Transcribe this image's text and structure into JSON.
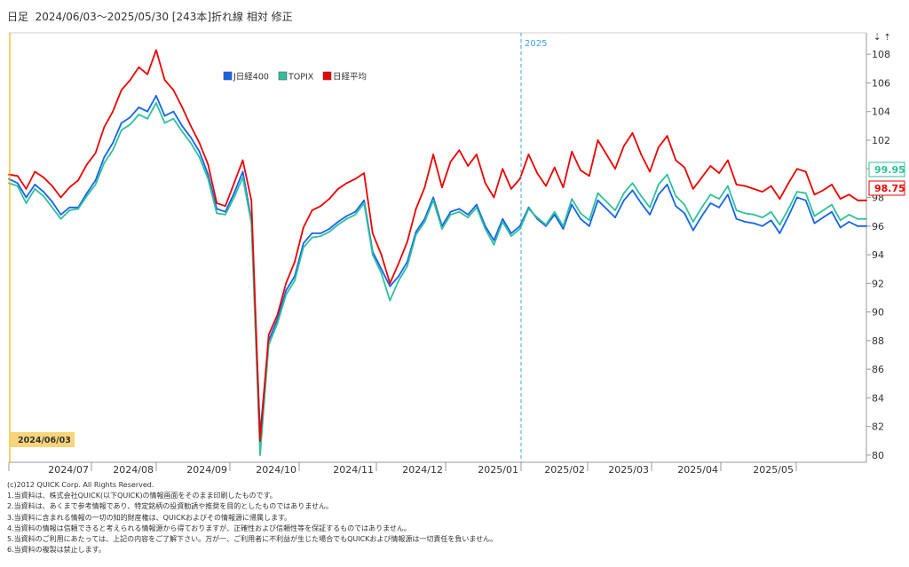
{
  "header": {
    "title": "日足  2024/06/03～2025/05/30 [243本]折れ線 相対 修正"
  },
  "scroll_arrows": "⇣ ⇡",
  "start_badge": "2024/06/03",
  "year_marker": "2025",
  "colors": {
    "jpx400": "#1464f0",
    "topix": "#2fc09a",
    "nikkei": "#ee0000",
    "badge_bg": "#f7d57a",
    "start_line": "#f0b400",
    "marker_line": "#3aa6e0"
  },
  "chart_data": {
    "type": "line",
    "x_ticks": [
      "2024/07",
      "2024/08",
      "2024/09",
      "2024/10",
      "2024/11",
      "2024/12",
      "2025/01",
      "2025/02",
      "2025/03",
      "2025/04",
      "2025/05"
    ],
    "ylim": [
      79.5,
      109.5
    ],
    "y_ticks": [
      80,
      82,
      84,
      86,
      88,
      90,
      92,
      94,
      96,
      98,
      100,
      102,
      104,
      106,
      108
    ],
    "legend_position": "top-left",
    "grid": false,
    "last_value_labels": [
      "99.95",
      "98.75"
    ],
    "series": [
      {
        "name": "J日経400",
        "color": "#1464f0",
        "values": [
          [
            1,
            99.3
          ],
          [
            2,
            99.0
          ],
          [
            3,
            98.0
          ],
          [
            4,
            98.9
          ],
          [
            5,
            98.4
          ],
          [
            6,
            97.7
          ],
          [
            7,
            96.8
          ],
          [
            8,
            97.3
          ],
          [
            9,
            97.3
          ],
          [
            10,
            98.3
          ],
          [
            11,
            99.2
          ],
          [
            12,
            100.8
          ],
          [
            13,
            101.8
          ],
          [
            14,
            103.2
          ],
          [
            15,
            103.6
          ],
          [
            16,
            104.3
          ],
          [
            17,
            104.0
          ],
          [
            18,
            105.1
          ],
          [
            19,
            103.7
          ],
          [
            20,
            104.0
          ],
          [
            21,
            103.0
          ],
          [
            22,
            102.2
          ],
          [
            23,
            101.2
          ],
          [
            24,
            99.6
          ],
          [
            25,
            97.2
          ],
          [
            26,
            97.0
          ],
          [
            27,
            98.3
          ],
          [
            28,
            99.8
          ],
          [
            29,
            96.4
          ],
          [
            30,
            81.5
          ],
          [
            31,
            88.0
          ],
          [
            32,
            89.5
          ],
          [
            33,
            91.5
          ],
          [
            34,
            92.5
          ],
          [
            35,
            94.8
          ],
          [
            36,
            95.5
          ],
          [
            37,
            95.5
          ],
          [
            38,
            95.8
          ],
          [
            39,
            96.3
          ],
          [
            40,
            96.7
          ],
          [
            41,
            97.0
          ],
          [
            42,
            97.8
          ],
          [
            43,
            94.2
          ],
          [
            44,
            93.0
          ],
          [
            45,
            91.8
          ],
          [
            46,
            92.5
          ],
          [
            47,
            93.5
          ],
          [
            48,
            95.6
          ],
          [
            49,
            96.5
          ],
          [
            50,
            98.0
          ],
          [
            51,
            96.0
          ],
          [
            52,
            97.0
          ],
          [
            53,
            97.2
          ],
          [
            54,
            96.8
          ],
          [
            55,
            97.5
          ],
          [
            56,
            96.0
          ],
          [
            57,
            95.0
          ],
          [
            58,
            96.5
          ],
          [
            59,
            95.5
          ],
          [
            60,
            96.0
          ],
          [
            61,
            97.3
          ],
          [
            62,
            96.5
          ],
          [
            63,
            96.0
          ],
          [
            64,
            96.8
          ],
          [
            65,
            95.8
          ],
          [
            66,
            97.5
          ],
          [
            67,
            96.5
          ],
          [
            68,
            96.0
          ],
          [
            69,
            97.8
          ],
          [
            70,
            97.2
          ],
          [
            71,
            96.6
          ],
          [
            72,
            97.8
          ],
          [
            73,
            98.5
          ],
          [
            74,
            97.6
          ],
          [
            75,
            96.8
          ],
          [
            76,
            98.2
          ],
          [
            77,
            98.9
          ],
          [
            78,
            97.4
          ],
          [
            79,
            96.9
          ],
          [
            80,
            95.7
          ],
          [
            81,
            96.7
          ],
          [
            82,
            97.6
          ],
          [
            83,
            97.3
          ],
          [
            84,
            98.2
          ],
          [
            85,
            96.5
          ],
          [
            86,
            96.3
          ],
          [
            87,
            96.2
          ],
          [
            88,
            96.0
          ],
          [
            89,
            96.4
          ],
          [
            90,
            95.5
          ],
          [
            91,
            96.7
          ],
          [
            92,
            98.0
          ],
          [
            93,
            97.8
          ],
          [
            94,
            96.2
          ],
          [
            95,
            96.6
          ],
          [
            96,
            97.0
          ],
          [
            97,
            95.9
          ],
          [
            98,
            96.3
          ],
          [
            99,
            96.0
          ],
          [
            100,
            96.0
          ]
        ]
      },
      {
        "name": "TOPIX",
        "color": "#2fc09a",
        "values": [
          [
            1,
            99.0
          ],
          [
            2,
            98.8
          ],
          [
            3,
            97.6
          ],
          [
            4,
            98.6
          ],
          [
            5,
            98.1
          ],
          [
            6,
            97.3
          ],
          [
            7,
            96.5
          ],
          [
            8,
            97.1
          ],
          [
            9,
            97.2
          ],
          [
            10,
            98.1
          ],
          [
            11,
            98.9
          ],
          [
            12,
            100.4
          ],
          [
            13,
            101.3
          ],
          [
            14,
            102.7
          ],
          [
            15,
            103.1
          ],
          [
            16,
            103.8
          ],
          [
            17,
            103.5
          ],
          [
            18,
            104.6
          ],
          [
            19,
            103.2
          ],
          [
            20,
            103.5
          ],
          [
            21,
            102.6
          ],
          [
            22,
            101.8
          ],
          [
            23,
            100.8
          ],
          [
            24,
            99.3
          ],
          [
            25,
            96.9
          ],
          [
            26,
            96.8
          ],
          [
            27,
            98.0
          ],
          [
            28,
            99.4
          ],
          [
            29,
            96.2
          ],
          [
            30,
            80.0
          ],
          [
            31,
            87.7
          ],
          [
            32,
            89.2
          ],
          [
            33,
            91.2
          ],
          [
            34,
            92.2
          ],
          [
            35,
            94.5
          ],
          [
            36,
            95.2
          ],
          [
            37,
            95.3
          ],
          [
            38,
            95.6
          ],
          [
            39,
            96.1
          ],
          [
            40,
            96.5
          ],
          [
            41,
            96.8
          ],
          [
            42,
            97.6
          ],
          [
            43,
            94.0
          ],
          [
            44,
            92.7
          ],
          [
            45,
            90.8
          ],
          [
            46,
            92.2
          ],
          [
            47,
            93.2
          ],
          [
            48,
            95.4
          ],
          [
            49,
            96.3
          ],
          [
            50,
            97.8
          ],
          [
            51,
            95.8
          ],
          [
            52,
            96.8
          ],
          [
            53,
            97.0
          ],
          [
            54,
            96.6
          ],
          [
            55,
            97.3
          ],
          [
            56,
            95.8
          ],
          [
            57,
            94.7
          ],
          [
            58,
            96.3
          ],
          [
            59,
            95.3
          ],
          [
            60,
            95.8
          ],
          [
            61,
            97.2
          ],
          [
            62,
            96.6
          ],
          [
            63,
            96.1
          ],
          [
            64,
            97.0
          ],
          [
            65,
            96.0
          ],
          [
            66,
            97.9
          ],
          [
            67,
            96.9
          ],
          [
            68,
            96.4
          ],
          [
            69,
            98.3
          ],
          [
            70,
            97.7
          ],
          [
            71,
            97.1
          ],
          [
            72,
            98.3
          ],
          [
            73,
            99.0
          ],
          [
            74,
            98.1
          ],
          [
            75,
            97.3
          ],
          [
            76,
            98.9
          ],
          [
            77,
            99.6
          ],
          [
            78,
            98.1
          ],
          [
            79,
            97.5
          ],
          [
            80,
            96.3
          ],
          [
            81,
            97.3
          ],
          [
            82,
            98.2
          ],
          [
            83,
            97.9
          ],
          [
            84,
            98.8
          ],
          [
            85,
            97.1
          ],
          [
            86,
            96.9
          ],
          [
            87,
            96.8
          ],
          [
            88,
            96.6
          ],
          [
            89,
            97.0
          ],
          [
            90,
            96.1
          ],
          [
            91,
            97.2
          ],
          [
            92,
            98.4
          ],
          [
            93,
            98.3
          ],
          [
            94,
            96.7
          ],
          [
            95,
            97.1
          ],
          [
            96,
            97.5
          ],
          [
            97,
            96.4
          ],
          [
            98,
            96.8
          ],
          [
            99,
            96.5
          ],
          [
            100,
            96.5
          ]
        ]
      },
      {
        "name": "日経平均",
        "color": "#ee0000",
        "values": [
          [
            1,
            99.6
          ],
          [
            2,
            99.5
          ],
          [
            3,
            98.6
          ],
          [
            4,
            99.8
          ],
          [
            5,
            99.4
          ],
          [
            6,
            98.8
          ],
          [
            7,
            98.0
          ],
          [
            8,
            98.7
          ],
          [
            9,
            99.2
          ],
          [
            10,
            100.3
          ],
          [
            11,
            101.1
          ],
          [
            12,
            102.9
          ],
          [
            13,
            104.0
          ],
          [
            14,
            105.5
          ],
          [
            15,
            106.2
          ],
          [
            16,
            107.1
          ],
          [
            17,
            106.6
          ],
          [
            18,
            108.3
          ],
          [
            19,
            106.2
          ],
          [
            20,
            105.5
          ],
          [
            21,
            104.3
          ],
          [
            22,
            103.0
          ],
          [
            23,
            101.8
          ],
          [
            24,
            100.3
          ],
          [
            25,
            97.6
          ],
          [
            26,
            97.4
          ],
          [
            27,
            99.0
          ],
          [
            28,
            100.6
          ],
          [
            29,
            97.8
          ],
          [
            30,
            81.0
          ],
          [
            31,
            88.4
          ],
          [
            32,
            89.8
          ],
          [
            33,
            92.0
          ],
          [
            34,
            93.5
          ],
          [
            35,
            95.9
          ],
          [
            36,
            97.1
          ],
          [
            37,
            97.4
          ],
          [
            38,
            97.9
          ],
          [
            39,
            98.6
          ],
          [
            40,
            99.0
          ],
          [
            41,
            99.3
          ],
          [
            42,
            99.7
          ],
          [
            43,
            95.5
          ],
          [
            44,
            94.0
          ],
          [
            45,
            92.0
          ],
          [
            46,
            93.4
          ],
          [
            47,
            94.9
          ],
          [
            48,
            97.2
          ],
          [
            49,
            98.7
          ],
          [
            50,
            101.0
          ],
          [
            51,
            98.7
          ],
          [
            52,
            100.5
          ],
          [
            53,
            101.3
          ],
          [
            54,
            100.2
          ],
          [
            55,
            101.0
          ],
          [
            56,
            99.0
          ],
          [
            57,
            98.0
          ],
          [
            58,
            100.0
          ],
          [
            59,
            98.6
          ],
          [
            60,
            99.3
          ],
          [
            61,
            101.0
          ],
          [
            62,
            99.7
          ],
          [
            63,
            98.8
          ],
          [
            64,
            100.1
          ],
          [
            65,
            98.7
          ],
          [
            66,
            101.2
          ],
          [
            67,
            99.9
          ],
          [
            68,
            99.5
          ],
          [
            69,
            102.0
          ],
          [
            70,
            101.0
          ],
          [
            71,
            100.0
          ],
          [
            72,
            101.6
          ],
          [
            73,
            102.5
          ],
          [
            74,
            101.0
          ],
          [
            75,
            99.8
          ],
          [
            76,
            101.5
          ],
          [
            77,
            102.3
          ],
          [
            78,
            100.6
          ],
          [
            79,
            100.1
          ],
          [
            80,
            98.6
          ],
          [
            81,
            99.4
          ],
          [
            82,
            100.2
          ],
          [
            83,
            99.7
          ],
          [
            84,
            100.6
          ],
          [
            85,
            98.9
          ],
          [
            86,
            98.8
          ],
          [
            87,
            98.6
          ],
          [
            88,
            98.4
          ],
          [
            89,
            98.8
          ],
          [
            90,
            97.9
          ],
          [
            91,
            99.0
          ],
          [
            92,
            100.0
          ],
          [
            93,
            99.8
          ],
          [
            94,
            98.2
          ],
          [
            95,
            98.5
          ],
          [
            96,
            98.9
          ],
          [
            97,
            97.9
          ],
          [
            98,
            98.2
          ],
          [
            99,
            97.8
          ],
          [
            100,
            97.8
          ]
        ]
      }
    ]
  },
  "disclaimer": [
    "(c)2012 QUICK Corp. All Rights Reserved.",
    "1.当資料は、株式会社QUICK(以下QUICK)の情報画面をそのまま印刷したものです。",
    "2.当資料は、あくまで参考情報であり、特定銘柄の投資勧誘や推奨を目的としたものではありません。",
    "3.当資料に含まれる情報の一切の知的財産権は、QUICKおよびその情報源に帰属します。",
    "4.当資料の情報は信頼できると考えられる情報源から得ておりますが、正確性および信頼性等を保証するものではありません。",
    "5.当資料のご利用にあたっては、上記の内容をご了解下さい。万が一、ご利用者に不利益が生じた場合でもQUICKおよび情報源は一切責任を負いません。",
    "6.当資料の複製は禁止します。"
  ]
}
